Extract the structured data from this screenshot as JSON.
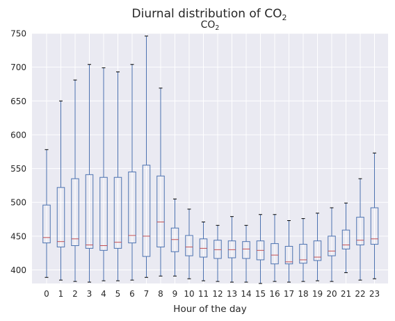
{
  "chart_data": {
    "type": "box",
    "title": "Diurnal distribution of CO",
    "title_subscript": "2",
    "subtitle": "CO",
    "subtitle_subscript": "2",
    "xlabel": "Hour of the day",
    "ylabel": "",
    "ylim": [
      380,
      750
    ],
    "yticks": [
      400,
      450,
      500,
      550,
      600,
      650,
      700,
      750
    ],
    "grid": true,
    "colors": {
      "background": "#eaeaf2",
      "grid": "#ffffff",
      "box": "#4c72b0",
      "median": "#c44e52",
      "text": "#262626"
    },
    "categories": [
      "0",
      "1",
      "2",
      "3",
      "4",
      "5",
      "6",
      "7",
      "8",
      "9",
      "10",
      "11",
      "12",
      "13",
      "14",
      "15",
      "16",
      "17",
      "18",
      "19",
      "20",
      "21",
      "22",
      "23"
    ],
    "boxes": [
      {
        "whislo": 389,
        "q1": 440,
        "med": 448,
        "q3": 496,
        "whishi": 578
      },
      {
        "whislo": 385,
        "q1": 434,
        "med": 442,
        "q3": 522,
        "whishi": 650
      },
      {
        "whislo": 383,
        "q1": 436,
        "med": 446,
        "q3": 535,
        "whishi": 681
      },
      {
        "whislo": 382,
        "q1": 432,
        "med": 437,
        "q3": 541,
        "whishi": 704
      },
      {
        "whislo": 384,
        "q1": 429,
        "med": 436,
        "q3": 537,
        "whishi": 699
      },
      {
        "whislo": 384,
        "q1": 432,
        "med": 441,
        "q3": 537,
        "whishi": 693
      },
      {
        "whislo": 385,
        "q1": 440,
        "med": 451,
        "q3": 545,
        "whishi": 704
      },
      {
        "whislo": 389,
        "q1": 420,
        "med": 450,
        "q3": 555,
        "whishi": 746
      },
      {
        "whislo": 391,
        "q1": 434,
        "med": 471,
        "q3": 539,
        "whishi": 669
      },
      {
        "whislo": 391,
        "q1": 427,
        "med": 445,
        "q3": 462,
        "whishi": 505
      },
      {
        "whislo": 387,
        "q1": 421,
        "med": 434,
        "q3": 451,
        "whishi": 490
      },
      {
        "whislo": 384,
        "q1": 419,
        "med": 432,
        "q3": 446,
        "whishi": 471
      },
      {
        "whislo": 383,
        "q1": 417,
        "med": 430,
        "q3": 444,
        "whishi": 466
      },
      {
        "whislo": 382,
        "q1": 418,
        "med": 430,
        "q3": 443,
        "whishi": 479
      },
      {
        "whislo": 382,
        "q1": 417,
        "med": 431,
        "q3": 442,
        "whishi": 466
      },
      {
        "whislo": 380,
        "q1": 415,
        "med": 429,
        "q3": 443,
        "whishi": 482
      },
      {
        "whislo": 383,
        "q1": 409,
        "med": 422,
        "q3": 439,
        "whishi": 482
      },
      {
        "whislo": 382,
        "q1": 409,
        "med": 412,
        "q3": 435,
        "whishi": 473
      },
      {
        "whislo": 383,
        "q1": 410,
        "med": 415,
        "q3": 438,
        "whishi": 476
      },
      {
        "whislo": 384,
        "q1": 414,
        "med": 419,
        "q3": 443,
        "whishi": 484
      },
      {
        "whislo": 383,
        "q1": 421,
        "med": 428,
        "q3": 450,
        "whishi": 492
      },
      {
        "whislo": 396,
        "q1": 431,
        "med": 437,
        "q3": 459,
        "whishi": 499
      },
      {
        "whislo": 385,
        "q1": 437,
        "med": 444,
        "q3": 478,
        "whishi": 535
      },
      {
        "whislo": 387,
        "q1": 438,
        "med": 446,
        "q3": 492,
        "whishi": 573
      }
    ]
  }
}
